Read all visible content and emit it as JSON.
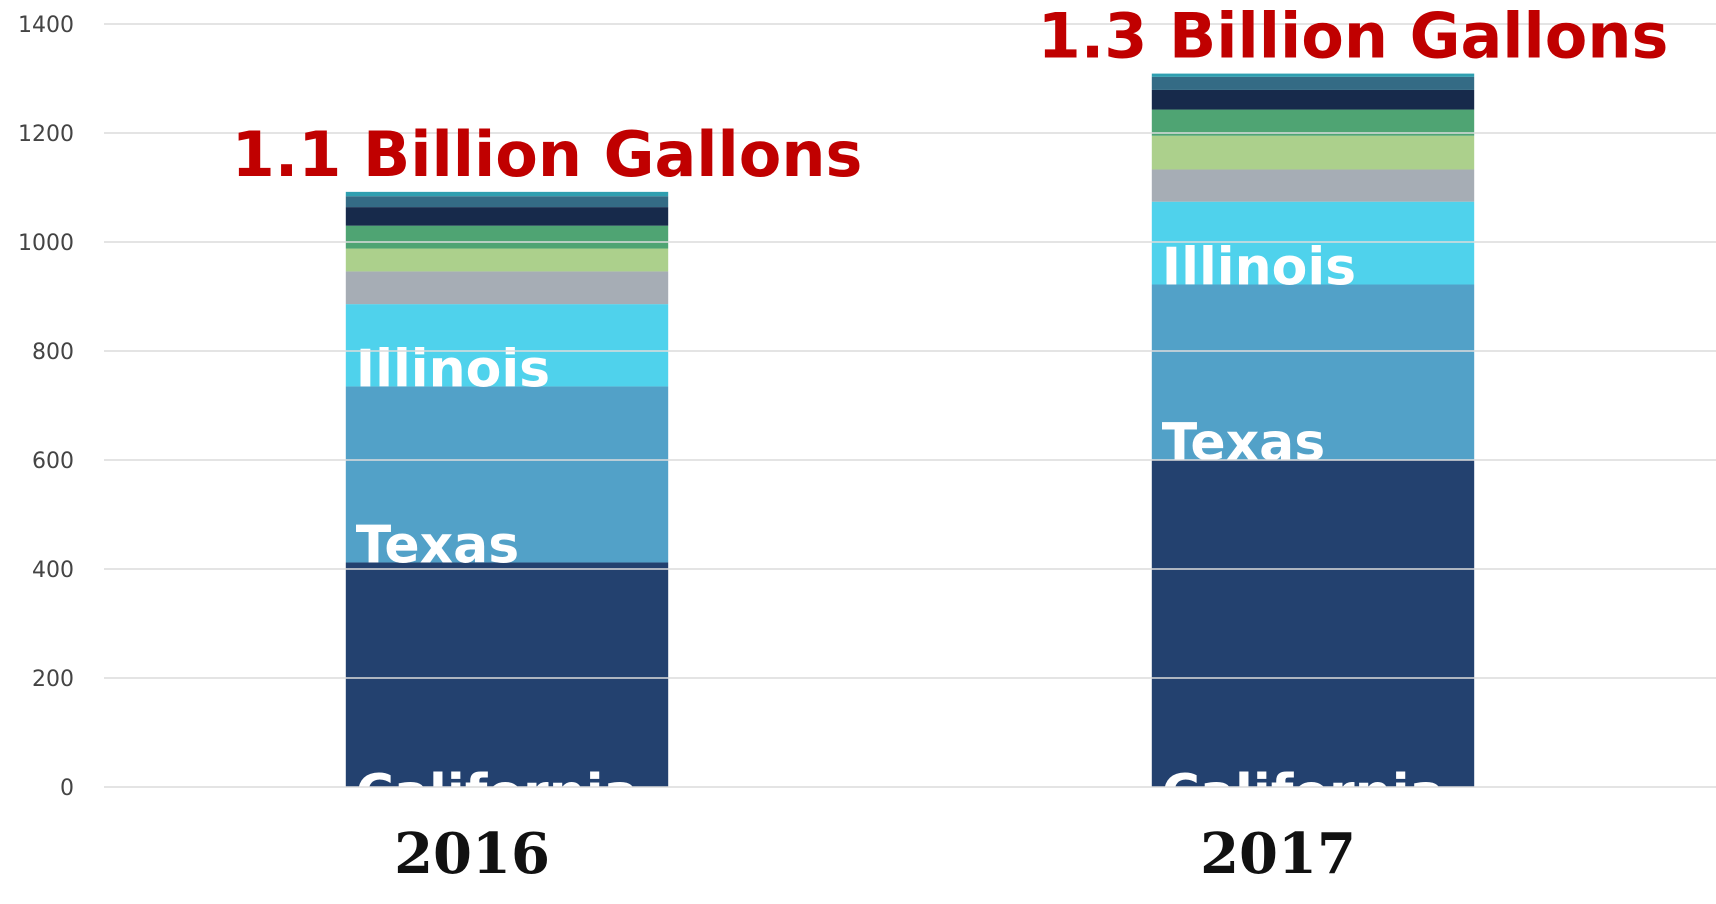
{
  "chart_data": {
    "type": "stacked_bar",
    "categories": [
      "2016",
      "2017"
    ],
    "annotations": [
      "1.1 Billion Gallons",
      "1.3 Billion Gallons"
    ],
    "series": [
      {
        "name": "California",
        "color": "#23416f",
        "values": [
          412,
          600
        ]
      },
      {
        "name": "Texas",
        "color": "#52a1c8",
        "values": [
          323,
          322
        ]
      },
      {
        "name": "Illinois",
        "color": "#4fd2ec",
        "values": [
          151,
          152
        ]
      },
      {
        "color": "#a6adb5",
        "values": [
          60,
          59
        ]
      },
      {
        "color": "#acd08c",
        "values": [
          42,
          62
        ]
      },
      {
        "color": "#4fa473",
        "values": [
          42,
          48
        ]
      },
      {
        "color": "#172a4b",
        "values": [
          34,
          36
        ]
      },
      {
        "color": "#346b85",
        "values": [
          20,
          24
        ]
      },
      {
        "color": "#2f9fb0",
        "values": [
          8,
          6
        ]
      }
    ],
    "ylim": [
      0,
      1400
    ],
    "yticks": [
      0,
      200,
      400,
      600,
      800,
      1000,
      1200,
      1400
    ],
    "grid": true
  }
}
